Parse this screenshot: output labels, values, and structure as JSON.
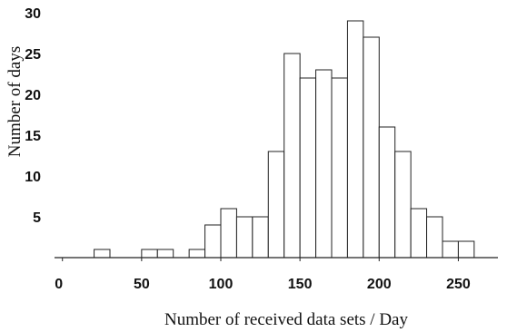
{
  "chart_data": {
    "type": "bar",
    "title": "",
    "xlabel": "Number of received data sets / Day",
    "ylabel": "Number of days",
    "bin_width": 10,
    "bin_starts": [
      20,
      30,
      40,
      50,
      60,
      70,
      80,
      90,
      100,
      110,
      120,
      130,
      140,
      150,
      160,
      170,
      180,
      190,
      200,
      210,
      220,
      230,
      240,
      250
    ],
    "values": [
      1,
      0,
      0,
      1,
      1,
      0,
      1,
      4,
      6,
      5,
      5,
      13,
      25,
      22,
      23,
      22,
      29,
      27,
      16,
      13,
      6,
      5,
      2,
      2
    ],
    "xlim": [
      -5,
      275
    ],
    "ylim": [
      0,
      30
    ],
    "x_ticks": [
      "0",
      "50",
      "100",
      "150",
      "200",
      "250"
    ],
    "y_ticks": [
      "5",
      "10",
      "15",
      "20",
      "25",
      "30"
    ],
    "grid": false,
    "legend": "none"
  }
}
